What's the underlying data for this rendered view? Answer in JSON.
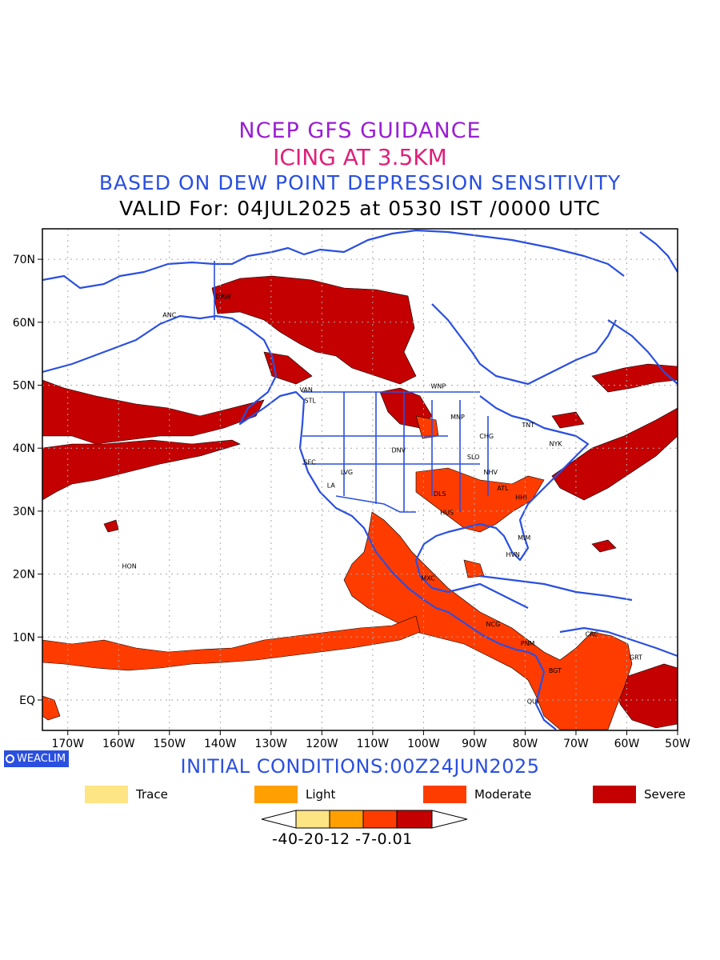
{
  "titles": {
    "line1": {
      "text": "NCEP GFS GUIDANCE",
      "color": "#9a1fd1"
    },
    "line2": {
      "text": "ICING AT 3.5KM",
      "color": "#e0207a"
    },
    "line3": {
      "text": "BASED ON DEW POINT DEPRESSION SENSITIVITY",
      "color": "#2a4fe0"
    },
    "line4": {
      "text": "VALID For: 04JUL2025 at 0530 IST /0000 UTC",
      "color": "#000000"
    }
  },
  "map": {
    "lat_ticks": [
      "70N",
      "60N",
      "50N",
      "40N",
      "30N",
      "20N",
      "10N",
      "EQ"
    ],
    "lon_ticks": [
      "170W",
      "160W",
      "150W",
      "140W",
      "130W",
      "120W",
      "110W",
      "100W",
      "90W",
      "80W",
      "70W",
      "60W",
      "50W"
    ],
    "coastline_color": "#2a4fe0",
    "city_labels": [
      {
        "text": "ANC",
        "lon": -150,
        "lat": 61.2
      },
      {
        "text": "VAN",
        "lon": -123.1,
        "lat": 49.3
      },
      {
        "text": "STL",
        "lon": -122.3,
        "lat": 47.6
      },
      {
        "text": "WNP",
        "lon": -97.1,
        "lat": 49.9
      },
      {
        "text": "MNP",
        "lon": -93.3,
        "lat": 45.0
      },
      {
        "text": "TNT",
        "lon": -79.4,
        "lat": 43.7
      },
      {
        "text": "CHG",
        "lon": -87.6,
        "lat": 41.9
      },
      {
        "text": "NYK",
        "lon": -74.0,
        "lat": 40.7
      },
      {
        "text": "DNV",
        "lon": -104.9,
        "lat": 39.7
      },
      {
        "text": "SFC",
        "lon": -122.4,
        "lat": 37.8
      },
      {
        "text": "SLO",
        "lon": -90.2,
        "lat": 38.6
      },
      {
        "text": "LVG",
        "lon": -115.1,
        "lat": 36.2
      },
      {
        "text": "NHV",
        "lon": -86.8,
        "lat": 36.2
      },
      {
        "text": "LA",
        "lon": -118.2,
        "lat": 34.1
      },
      {
        "text": "ATL",
        "lon": -84.4,
        "lat": 33.7
      },
      {
        "text": "DLS",
        "lon": -96.8,
        "lat": 32.8
      },
      {
        "text": "HHI",
        "lon": -80.8,
        "lat": 32.2
      },
      {
        "text": "HUS",
        "lon": -95.4,
        "lat": 29.8
      },
      {
        "text": "MIM",
        "lon": -80.2,
        "lat": 25.8
      },
      {
        "text": "HON",
        "lon": -157.9,
        "lat": 21.3
      },
      {
        "text": "HVN",
        "lon": -82.4,
        "lat": 23.1
      },
      {
        "text": "MXC",
        "lon": -99.1,
        "lat": 19.4
      },
      {
        "text": "NCG",
        "lon": -86.3,
        "lat": 12.1
      },
      {
        "text": "CRC",
        "lon": -66.9,
        "lat": 10.5
      },
      {
        "text": "PNM",
        "lon": -79.5,
        "lat": 9.0
      },
      {
        "text": "GRT",
        "lon": -58.2,
        "lat": 6.8
      },
      {
        "text": "BGT",
        "lon": -74.1,
        "lat": 4.7
      },
      {
        "text": "QUI",
        "lon": -78.5,
        "lat": -0.2
      },
      {
        "text": "DAW",
        "lon": -139.4,
        "lat": 64.1
      }
    ]
  },
  "initial_conditions": {
    "text": "INITIAL CONDITIONS:00Z24JUN2025",
    "color": "#2a4fe0"
  },
  "logo": {
    "text": "WEACLIM",
    "bg": "#2a4fe0"
  },
  "legend": [
    {
      "label": "Trace",
      "color": "#fee583"
    },
    {
      "label": "Light",
      "color": "#ff9f00"
    },
    {
      "label": "Moderate",
      "color": "#ff3c00"
    },
    {
      "label": "Severe",
      "color": "#c40000"
    }
  ],
  "colorbar": {
    "ticks_text": "-40-20-12 -7-0.01"
  }
}
